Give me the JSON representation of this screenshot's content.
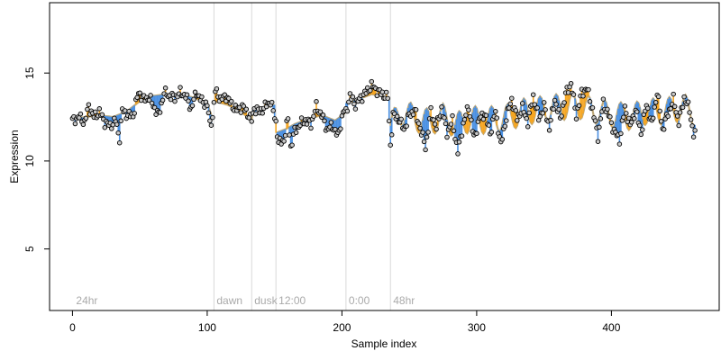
{
  "chart_data": {
    "type": "scatter",
    "title": "",
    "xlabel": "Sample index",
    "ylabel": "Expression",
    "xlim": [
      -17,
      480
    ],
    "ylim": [
      1.5,
      19
    ],
    "xticks": [
      0,
      100,
      200,
      300,
      400
    ],
    "yticks": [
      5,
      10,
      15
    ],
    "grid": false,
    "legend": "none",
    "colors": {
      "above": "#f5a623",
      "below": "#4a90e2",
      "marker_fill": "#c8c8c8",
      "marker_stroke": "#000000",
      "fitted_line": "#bfa97a",
      "period_line": "#d9d9d9",
      "period_label": "#aaaaaa"
    },
    "periods": [
      {
        "label": "24hr",
        "start": 0
      },
      {
        "label": "dawn",
        "start": 105
      },
      {
        "label": "dusk",
        "start": 133
      },
      {
        "label": "12:00",
        "start": 151
      },
      {
        "label": "0:00",
        "start": 203
      },
      {
        "label": "48hr",
        "start": 236
      }
    ],
    "fitted_anchors": [
      [
        0,
        12.4
      ],
      [
        10,
        12.5
      ],
      [
        20,
        12.6
      ],
      [
        30,
        12.5
      ],
      [
        40,
        12.8
      ],
      [
        50,
        13.4
      ],
      [
        60,
        13.7
      ],
      [
        70,
        13.8
      ],
      [
        80,
        13.8
      ],
      [
        90,
        13.6
      ],
      [
        100,
        13.3
      ],
      [
        104,
        12.4
      ],
      [
        105,
        13.4
      ],
      [
        115,
        13.2
      ],
      [
        125,
        12.8
      ],
      [
        133,
        12.3
      ],
      [
        134,
        12.9
      ],
      [
        142,
        13.0
      ],
      [
        150,
        13.2
      ],
      [
        151,
        11.6
      ],
      [
        158,
        11.8
      ],
      [
        165,
        12.1
      ],
      [
        175,
        12.4
      ],
      [
        185,
        12.6
      ],
      [
        195,
        12.3
      ],
      [
        202,
        12.7
      ],
      [
        203,
        13.3
      ],
      [
        212,
        13.5
      ],
      [
        222,
        13.8
      ],
      [
        230,
        13.7
      ],
      [
        235,
        13.5
      ],
      [
        236,
        12.0
      ],
      [
        245,
        12.8
      ],
      [
        255,
        12.4
      ],
      [
        265,
        12.2
      ],
      [
        275,
        12.5
      ],
      [
        285,
        12.0
      ],
      [
        295,
        12.4
      ],
      [
        305,
        12.3
      ],
      [
        315,
        12.4
      ],
      [
        325,
        12.5
      ],
      [
        335,
        12.8
      ],
      [
        345,
        12.9
      ],
      [
        355,
        13.0
      ],
      [
        365,
        13.1
      ],
      [
        375,
        13.2
      ],
      [
        385,
        12.9
      ],
      [
        395,
        12.7
      ],
      [
        405,
        12.6
      ],
      [
        415,
        12.5
      ],
      [
        425,
        12.8
      ],
      [
        435,
        12.8
      ],
      [
        445,
        12.9
      ],
      [
        455,
        13.0
      ],
      [
        462,
        12.7
      ]
    ],
    "oscillation_start": 236,
    "oscillation_period": 12,
    "oscillation_amplitude": 0.75,
    "series_anchors": [
      [
        0,
        12.3
      ],
      [
        5,
        12.5
      ],
      [
        9,
        12.2
      ],
      [
        12,
        13.1
      ],
      [
        16,
        12.5
      ],
      [
        20,
        12.8
      ],
      [
        24,
        12.2
      ],
      [
        28,
        12.0
      ],
      [
        32,
        12.3
      ],
      [
        35,
        11.3
      ],
      [
        37,
        12.9
      ],
      [
        41,
        12.6
      ],
      [
        45,
        12.6
      ],
      [
        49,
        13.9
      ],
      [
        53,
        13.5
      ],
      [
        57,
        13.6
      ],
      [
        61,
        13.0
      ],
      [
        64,
        12.6
      ],
      [
        68,
        13.9
      ],
      [
        72,
        13.7
      ],
      [
        76,
        13.6
      ],
      [
        80,
        13.9
      ],
      [
        84,
        13.7
      ],
      [
        88,
        13.0
      ],
      [
        92,
        13.9
      ],
      [
        96,
        13.4
      ],
      [
        100,
        13.2
      ],
      [
        102,
        12.1
      ],
      [
        104,
        12.5
      ],
      [
        106,
        14.0
      ],
      [
        110,
        13.5
      ],
      [
        114,
        13.7
      ],
      [
        118,
        13.2
      ],
      [
        122,
        12.9
      ],
      [
        126,
        13.1
      ],
      [
        130,
        12.7
      ],
      [
        133,
        12.3
      ],
      [
        135,
        13.0
      ],
      [
        139,
        12.8
      ],
      [
        143,
        13.1
      ],
      [
        147,
        13.4
      ],
      [
        151,
        12.2
      ],
      [
        153,
        11.0
      ],
      [
        157,
        11.2
      ],
      [
        160,
        12.4
      ],
      [
        162,
        10.8
      ],
      [
        165,
        11.7
      ],
      [
        169,
        12.1
      ],
      [
        173,
        12.3
      ],
      [
        177,
        12.1
      ],
      [
        181,
        13.1
      ],
      [
        185,
        12.6
      ],
      [
        189,
        11.8
      ],
      [
        193,
        12.0
      ],
      [
        197,
        11.4
      ],
      [
        201,
        12.8
      ],
      [
        203,
        12.8
      ],
      [
        206,
        13.7
      ],
      [
        210,
        13.2
      ],
      [
        214,
        13.6
      ],
      [
        218,
        13.9
      ],
      [
        222,
        14.3
      ],
      [
        226,
        14.0
      ],
      [
        230,
        13.8
      ],
      [
        234,
        13.6
      ],
      [
        236,
        10.9
      ],
      [
        238,
        12.6
      ],
      [
        242,
        12.4
      ],
      [
        246,
        11.8
      ],
      [
        250,
        12.6
      ],
      [
        254,
        12.9
      ],
      [
        258,
        11.9
      ],
      [
        262,
        10.8
      ],
      [
        266,
        12.8
      ],
      [
        270,
        11.9
      ],
      [
        274,
        13.0
      ],
      [
        278,
        11.6
      ],
      [
        282,
        12.3
      ],
      [
        286,
        10.5
      ],
      [
        290,
        12.1
      ],
      [
        294,
        13.1
      ],
      [
        298,
        11.3
      ],
      [
        302,
        12.4
      ],
      [
        306,
        12.7
      ],
      [
        310,
        11.6
      ],
      [
        314,
        12.8
      ],
      [
        318,
        10.9
      ],
      [
        322,
        12.5
      ],
      [
        326,
        13.5
      ],
      [
        330,
        12.4
      ],
      [
        334,
        13.0
      ],
      [
        338,
        12.2
      ],
      [
        342,
        13.7
      ],
      [
        346,
        12.4
      ],
      [
        350,
        13.1
      ],
      [
        354,
        11.9
      ],
      [
        358,
        13.5
      ],
      [
        362,
        12.4
      ],
      [
        366,
        13.8
      ],
      [
        370,
        14.4
      ],
      [
        374,
        12.6
      ],
      [
        378,
        13.9
      ],
      [
        382,
        14.1
      ],
      [
        386,
        12.9
      ],
      [
        390,
        11.4
      ],
      [
        394,
        13.3
      ],
      [
        398,
        12.6
      ],
      [
        402,
        11.7
      ],
      [
        406,
        11.2
      ],
      [
        410,
        13.0
      ],
      [
        414,
        12.0
      ],
      [
        418,
        12.9
      ],
      [
        422,
        11.6
      ],
      [
        426,
        13.2
      ],
      [
        430,
        12.1
      ],
      [
        434,
        13.9
      ],
      [
        438,
        11.8
      ],
      [
        442,
        12.7
      ],
      [
        446,
        13.5
      ],
      [
        450,
        12.2
      ],
      [
        454,
        13.6
      ],
      [
        458,
        12.9
      ],
      [
        461,
        11.5
      ]
    ],
    "n_points": 463
  }
}
